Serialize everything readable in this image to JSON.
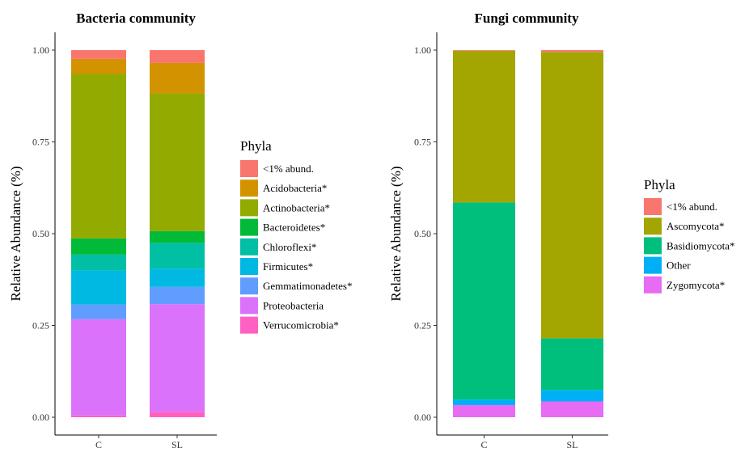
{
  "chart_data": [
    {
      "type": "bar",
      "stacked": true,
      "title": "Bacteria community",
      "xlabel": "",
      "ylabel": "Relative Abundance (%)",
      "ylim": [
        0,
        1.0
      ],
      "yticks": [
        "0.00",
        "0.25",
        "0.50",
        "0.75",
        "1.00"
      ],
      "categories": [
        "C",
        "SL"
      ],
      "legend_title": "Phyla",
      "legend_placement": "right",
      "grid": false,
      "series": [
        {
          "name": "Verrucomicrobia*",
          "color": "#FF61C3",
          "values": [
            0.005,
            0.015
          ]
        },
        {
          "name": "Proteobacteria",
          "color": "#DB72FB",
          "values": [
            0.262,
            0.293
          ]
        },
        {
          "name": "Gemmatimonadetes*",
          "color": "#619CFF",
          "values": [
            0.04,
            0.047
          ]
        },
        {
          "name": "Firmicutes*",
          "color": "#00B9E3",
          "values": [
            0.093,
            0.05
          ]
        },
        {
          "name": "Chloroflexi*",
          "color": "#00BFA5",
          "values": [
            0.043,
            0.07
          ]
        },
        {
          "name": "Bacteroidetes*",
          "color": "#00BA38",
          "values": [
            0.044,
            0.032
          ]
        },
        {
          "name": "Actinobacteria*",
          "color": "#93AA00",
          "values": [
            0.448,
            0.375
          ]
        },
        {
          "name": "Acidobacteria*",
          "color": "#D39200",
          "values": [
            0.041,
            0.083
          ]
        },
        {
          "name": "<1% abund.",
          "color": "#F8766D",
          "values": [
            0.024,
            0.035
          ]
        }
      ]
    },
    {
      "type": "bar",
      "stacked": true,
      "title": "Fungi community",
      "xlabel": "",
      "ylabel": "Relative Abundance (%)",
      "ylim": [
        0,
        1.0
      ],
      "yticks": [
        "0.00",
        "0.25",
        "0.50",
        "0.75",
        "1.00"
      ],
      "categories": [
        "C",
        "SL"
      ],
      "legend_title": "Phyla",
      "legend_placement": "right",
      "grid": false,
      "series": [
        {
          "name": "Zygomycota*",
          "color": "#E76BF3",
          "values": [
            0.033,
            0.043
          ]
        },
        {
          "name": "Other",
          "color": "#00B0F6",
          "values": [
            0.015,
            0.031
          ]
        },
        {
          "name": "Basidiomycota*",
          "color": "#00BF7D",
          "values": [
            0.537,
            0.141
          ]
        },
        {
          "name": "Ascomycota*",
          "color": "#A3A500",
          "values": [
            0.413,
            0.78
          ]
        },
        {
          "name": "<1% abund.",
          "color": "#F8766D",
          "values": [
            0.002,
            0.005
          ]
        }
      ]
    }
  ]
}
